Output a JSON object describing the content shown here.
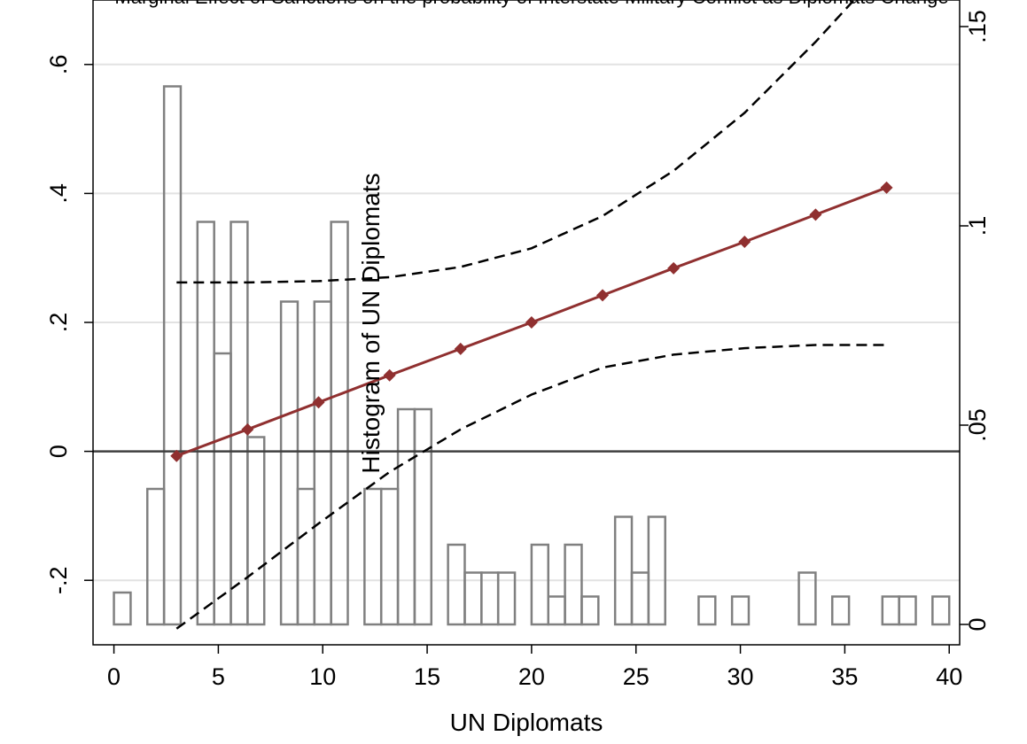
{
  "chart_data": {
    "type": "line",
    "top_note": "Marginal Effect of Sanctions on the probability of Interstate Military Conflict as Diplomats Change",
    "xlabel": "UN Diplomats",
    "y2label": "Histogram of UN Diplomats",
    "xlim": [
      -1,
      40.5
    ],
    "ylim": [
      -0.3,
      0.7
    ],
    "y2lim": [
      0,
      0.15
    ],
    "xticks": [
      0,
      5,
      10,
      15,
      20,
      25,
      30,
      35,
      40
    ],
    "yticks": [
      -0.2,
      0,
      0.2,
      0.4,
      0.6
    ],
    "ytick_labels": [
      "-.2",
      "0",
      ".2",
      ".4",
      ".6"
    ],
    "y2ticks": [
      0,
      0.05,
      0.1,
      0.15
    ],
    "y2tick_labels": [
      "0",
      ".05",
      ".1",
      ".15"
    ],
    "grid": true,
    "colors": {
      "effect": "#903030",
      "ci": "#000000",
      "hist": "#808080",
      "zero": "#404040",
      "grid": "#e2e2e2"
    },
    "series": [
      {
        "role": "marginal_effect",
        "x": [
          3,
          6.4,
          9.8,
          13.2,
          16.6,
          20,
          23.4,
          26.8,
          30.2,
          33.6,
          37
        ],
        "y": [
          -0.007,
          0.034,
          0.076,
          0.118,
          0.159,
          0.2,
          0.242,
          0.284,
          0.325,
          0.367,
          0.409
        ]
      },
      {
        "role": "ci_upper",
        "x": [
          3,
          6.4,
          9.8,
          13.2,
          16.6,
          20,
          23.4,
          26.8,
          30.2,
          33.6,
          37
        ],
        "y": [
          0.262,
          0.262,
          0.264,
          0.27,
          0.286,
          0.315,
          0.365,
          0.435,
          0.525,
          0.635,
          0.755
        ]
      },
      {
        "role": "ci_lower",
        "x": [
          3,
          6.4,
          9.8,
          13.2,
          16.6,
          20,
          23.4,
          26.8,
          30.2,
          33.6,
          37
        ],
        "y": [
          -0.275,
          -0.195,
          -0.112,
          -0.032,
          0.034,
          0.088,
          0.13,
          0.15,
          0.16,
          0.165,
          0.165
        ]
      }
    ],
    "histogram": {
      "bin_width": 0.8,
      "bins": [
        {
          "x": 0.4,
          "density": 0.008
        },
        {
          "x": 2.0,
          "density": 0.034
        },
        {
          "x": 2.8,
          "density": 0.135
        },
        {
          "x": 4.4,
          "density": 0.101
        },
        {
          "x": 5.2,
          "density": 0.068
        },
        {
          "x": 6.0,
          "density": 0.101
        },
        {
          "x": 6.8,
          "density": 0.047
        },
        {
          "x": 8.4,
          "density": 0.081
        },
        {
          "x": 9.2,
          "density": 0.034
        },
        {
          "x": 10.0,
          "density": 0.081
        },
        {
          "x": 10.8,
          "density": 0.101
        },
        {
          "x": 12.4,
          "density": 0.034
        },
        {
          "x": 13.2,
          "density": 0.034
        },
        {
          "x": 14.0,
          "density": 0.054
        },
        {
          "x": 14.8,
          "density": 0.054
        },
        {
          "x": 16.4,
          "density": 0.02
        },
        {
          "x": 17.2,
          "density": 0.013
        },
        {
          "x": 18.0,
          "density": 0.013
        },
        {
          "x": 18.8,
          "density": 0.013
        },
        {
          "x": 20.4,
          "density": 0.02
        },
        {
          "x": 21.2,
          "density": 0.007
        },
        {
          "x": 22.0,
          "density": 0.02
        },
        {
          "x": 22.8,
          "density": 0.007
        },
        {
          "x": 24.4,
          "density": 0.027
        },
        {
          "x": 25.2,
          "density": 0.013
        },
        {
          "x": 26.0,
          "density": 0.027
        },
        {
          "x": 28.4,
          "density": 0.007
        },
        {
          "x": 30.0,
          "density": 0.007
        },
        {
          "x": 33.2,
          "density": 0.013
        },
        {
          "x": 34.8,
          "density": 0.007
        },
        {
          "x": 37.2,
          "density": 0.007
        },
        {
          "x": 38.0,
          "density": 0.007
        },
        {
          "x": 39.6,
          "density": 0.007
        }
      ]
    }
  }
}
